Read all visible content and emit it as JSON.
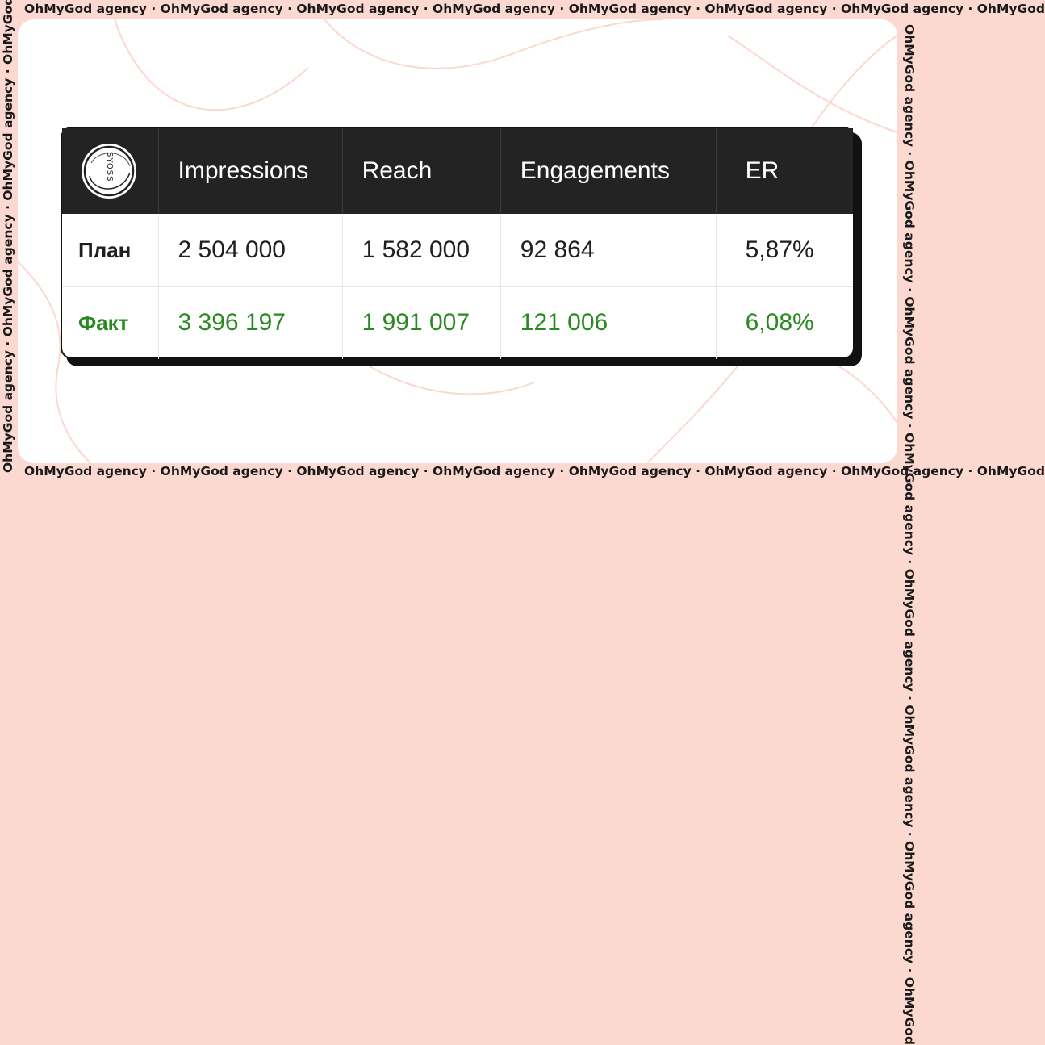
{
  "ticker": {
    "text": "OhMyGod agency · OhMyGod agency · OhMyGod agency · OhMyGod agency · OhMyGod agency · OhMyGod agency · OhMyGod agency · OhMyGod"
  },
  "colors": {
    "frame": "#fcd9d0",
    "header_bg": "#232323",
    "fact_green": "#2a8a22",
    "text_dark": "#1f1f1f"
  },
  "table": {
    "logo_text": "SYOSS",
    "headers": [
      "Impressions",
      "Reach",
      "Engagements",
      "ER"
    ],
    "rows": [
      {
        "label": "План",
        "values": [
          "2 504 000",
          "1 582 000",
          "92 864",
          "5,87%"
        ]
      },
      {
        "label": "Факт",
        "values": [
          "3 396 197",
          "1 991 007",
          "121 006",
          "6,08%"
        ]
      }
    ]
  }
}
